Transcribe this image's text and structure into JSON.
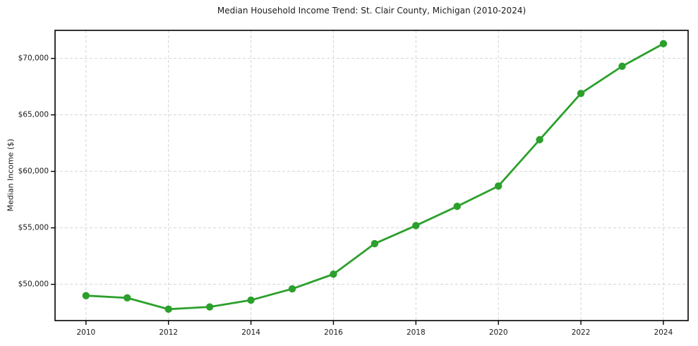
{
  "chart_data": {
    "type": "line",
    "title": "Median Household Income Trend: St. Clair County, Michigan (2010-2024)",
    "xlabel": "",
    "ylabel": "Median Income ($)",
    "x": [
      2010,
      2011,
      2012,
      2013,
      2014,
      2015,
      2016,
      2017,
      2018,
      2019,
      2020,
      2021,
      2022,
      2023,
      2024
    ],
    "series": [
      {
        "name": "Median household income",
        "color": "#2ca02c",
        "values": [
          49000,
          48800,
          47800,
          48000,
          48600,
          49600,
          50900,
          53600,
          55200,
          56900,
          58700,
          62800,
          66900,
          69300,
          71300
        ]
      }
    ],
    "x_ticks": [
      {
        "value": 2010,
        "label": "2010"
      },
      {
        "value": 2012,
        "label": "2012"
      },
      {
        "value": 2014,
        "label": "2014"
      },
      {
        "value": 2016,
        "label": "2016"
      },
      {
        "value": 2018,
        "label": "2018"
      },
      {
        "value": 2020,
        "label": "2020"
      },
      {
        "value": 2022,
        "label": "2022"
      },
      {
        "value": 2024,
        "label": "2024"
      }
    ],
    "y_ticks": [
      {
        "value": 50000,
        "label": "$50,000"
      },
      {
        "value": 55000,
        "label": "$55,000"
      },
      {
        "value": 60000,
        "label": "$60,000"
      },
      {
        "value": 65000,
        "label": "$65,000"
      },
      {
        "value": 70000,
        "label": "$70,000"
      }
    ],
    "xlim": [
      2009.25,
      2024.6
    ],
    "ylim": [
      46790,
      72480
    ],
    "grid": true,
    "grid_style": "dashed",
    "grid_color": "#d4d4d4",
    "axis_color": "#000000",
    "text_color": "#1a1a1a",
    "line_width": 2.8,
    "marker": "circle",
    "marker_radius": 5.2,
    "legend": "none"
  }
}
